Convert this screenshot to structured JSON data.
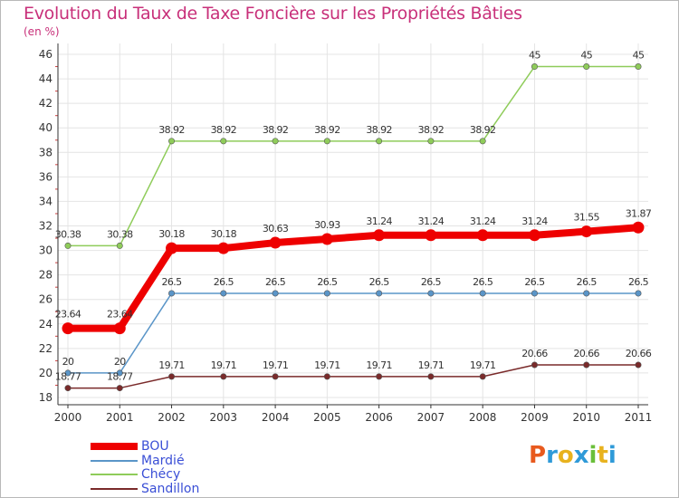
{
  "chart_data": {
    "type": "line",
    "title": "Evolution du Taux de Taxe Foncière sur les Propriétés Bâties",
    "unit_label": "(en %)",
    "xlabel": "",
    "ylabel": "",
    "categories": [
      "2000",
      "2001",
      "2002",
      "2003",
      "2004",
      "2005",
      "2006",
      "2007",
      "2008",
      "2009",
      "2010",
      "2011"
    ],
    "y_ticks": [
      "18",
      "20",
      "22",
      "24",
      "26",
      "28",
      "30",
      "32",
      "34",
      "36",
      "38",
      "40",
      "42",
      "44",
      "46"
    ],
    "ylim": [
      18,
      46
    ],
    "grid": true,
    "series": [
      {
        "name": "BOU",
        "color": "#ee0000",
        "emphasis": true,
        "values": [
          23.64,
          23.64,
          30.18,
          30.18,
          30.63,
          30.93,
          31.24,
          31.24,
          31.24,
          31.24,
          31.55,
          31.87
        ],
        "labels": [
          "23.64",
          "23.64",
          "30.18",
          "30.18",
          "30.63",
          "30.93",
          "31.24",
          "31.24",
          "31.24",
          "31.24",
          "31.55",
          "31.87"
        ]
      },
      {
        "name": "Mardié",
        "color": "#5a95c8",
        "emphasis": false,
        "values": [
          20,
          20,
          26.5,
          26.5,
          26.5,
          26.5,
          26.5,
          26.5,
          26.5,
          26.5,
          26.5,
          26.5
        ],
        "labels": [
          "20",
          "20",
          "26.5",
          "26.5",
          "26.5",
          "26.5",
          "26.5",
          "26.5",
          "26.5",
          "26.5",
          "26.5",
          "26.5"
        ]
      },
      {
        "name": "Chécy",
        "color": "#8fcc5a",
        "emphasis": false,
        "values": [
          30.38,
          30.38,
          38.92,
          38.92,
          38.92,
          38.92,
          38.92,
          38.92,
          38.92,
          45,
          45,
          45
        ],
        "labels": [
          "30.38",
          "30.38",
          "38.92",
          "38.92",
          "38.92",
          "38.92",
          "38.92",
          "38.92",
          "38.92",
          "45",
          "45",
          "45"
        ]
      },
      {
        "name": "Sandillon",
        "color": "#7a2a2a",
        "emphasis": false,
        "values": [
          18.77,
          18.77,
          19.71,
          19.71,
          19.71,
          19.71,
          19.71,
          19.71,
          19.71,
          20.66,
          20.66,
          20.66
        ],
        "labels": [
          "18.77",
          "18.77",
          "19.71",
          "19.71",
          "19.71",
          "19.71",
          "19.71",
          "19.71",
          "19.71",
          "20.66",
          "20.66",
          "20.66"
        ]
      }
    ],
    "legend_position": "bottom-left"
  },
  "logo": {
    "text": "Proxiti"
  }
}
